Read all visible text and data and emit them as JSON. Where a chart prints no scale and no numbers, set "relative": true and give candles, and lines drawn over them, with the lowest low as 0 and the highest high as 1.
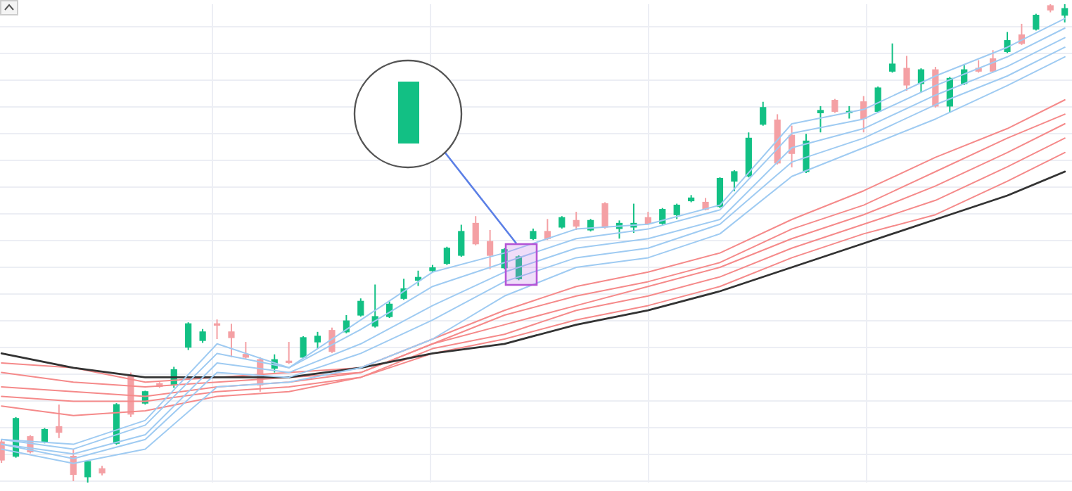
{
  "chart_data": {
    "type": "candlestick",
    "relative": true,
    "grid": true,
    "tick_labels": false,
    "categories": [
      null,
      null,
      null,
      null,
      null,
      null,
      null,
      null,
      null,
      null,
      null,
      null,
      null,
      null,
      null,
      null,
      null,
      null,
      null,
      null,
      null,
      null,
      null,
      null,
      null,
      null,
      null,
      null,
      null,
      null,
      null,
      null,
      null,
      null,
      null,
      null,
      null,
      null,
      null,
      null,
      null,
      null,
      null,
      null,
      null,
      null,
      null,
      null,
      null,
      null,
      null,
      null,
      null,
      null,
      null,
      null,
      null,
      null,
      null,
      null,
      null,
      null,
      null,
      null,
      null,
      null,
      null,
      null,
      null,
      null,
      null,
      null,
      null,
      null,
      null
    ],
    "ohlc": [
      [
        0.085,
        0.09,
        0.041,
        0.047
      ],
      [
        0.055,
        0.137,
        0.052,
        0.134
      ],
      [
        0.096,
        0.099,
        0.061,
        0.064
      ],
      [
        0.085,
        0.114,
        0.082,
        0.111
      ],
      [
        0.117,
        0.163,
        0.093,
        0.105
      ],
      [
        0.055,
        0.07,
        0.003,
        0.017
      ],
      [
        0.012,
        0.047,
        0,
        0.044
      ],
      [
        0.029,
        0.035,
        0.015,
        0.02
      ],
      [
        0.082,
        0.166,
        0.079,
        0.163
      ],
      [
        0.222,
        0.23,
        0.137,
        0.143
      ],
      [
        0.166,
        0.192,
        0.163,
        0.19
      ],
      [
        0.207,
        0.21,
        0.198,
        0.201
      ],
      [
        0.204,
        0.242,
        0.198,
        0.236
      ],
      [
        0.283,
        0.335,
        0.277,
        0.332
      ],
      [
        0.297,
        0.321,
        0.292,
        0.315
      ],
      [
        0.332,
        0.341,
        0.3,
        0.329
      ],
      [
        0.315,
        0.332,
        0.262,
        0.303
      ],
      [
        0.268,
        0.294,
        0.259,
        0.262
      ],
      [
        0.257,
        0.262,
        0.19,
        0.204
      ],
      [
        0.239,
        0.268,
        0.23,
        0.257
      ],
      [
        0.254,
        0.294,
        0.248,
        0.251
      ],
      [
        0.262,
        0.306,
        0.259,
        0.303
      ],
      [
        0.294,
        0.315,
        0.28,
        0.306
      ],
      [
        0.318,
        0.324,
        0.271,
        0.274
      ],
      [
        0.315,
        0.35,
        0.312,
        0.338
      ],
      [
        0.35,
        0.385,
        0.347,
        0.379
      ],
      [
        0.327,
        0.414,
        0.324,
        0.347
      ],
      [
        0.347,
        0.379,
        0.344,
        0.373
      ],
      [
        0.385,
        0.426,
        0.382,
        0.405
      ],
      [
        0.423,
        0.443,
        0.411,
        0.429
      ],
      [
        0.443,
        0.455,
        0.44,
        0.449
      ],
      [
        0.458,
        0.493,
        0.455,
        0.49
      ],
      [
        0.475,
        0.539,
        0.472,
        0.525
      ],
      [
        0.542,
        0.557,
        0.496,
        0.499
      ],
      [
        0.504,
        0.528,
        0.446,
        0.475
      ],
      [
        0.449,
        0.49,
        0.446,
        0.487
      ],
      [
        0.426,
        0.475,
        0.423,
        0.472
      ],
      [
        0.51,
        0.531,
        0.507,
        0.525
      ],
      [
        0.525,
        0.551,
        0.507,
        0.51
      ],
      [
        0.534,
        0.557,
        0.531,
        0.554
      ],
      [
        0.548,
        0.566,
        0.528,
        0.536
      ],
      [
        0.528,
        0.551,
        0.525,
        0.548
      ],
      [
        0.583,
        0.586,
        0.531,
        0.534
      ],
      [
        0.531,
        0.548,
        0.51,
        0.542
      ],
      [
        0.534,
        0.583,
        0.522,
        0.542
      ],
      [
        0.554,
        0.566,
        0.539,
        0.542
      ],
      [
        0.542,
        0.574,
        0.539,
        0.571
      ],
      [
        0.56,
        0.583,
        0.551,
        0.58
      ],
      [
        0.589,
        0.601,
        0.586,
        0.595
      ],
      [
        0.586,
        0.595,
        0.569,
        0.571
      ],
      [
        0.577,
        0.638,
        0.574,
        0.636
      ],
      [
        0.63,
        0.653,
        0.609,
        0.65
      ],
      [
        0.641,
        0.732,
        0.638,
        0.72
      ],
      [
        0.749,
        0.796,
        0.746,
        0.784
      ],
      [
        0.758,
        0.77,
        0.665,
        0.668
      ],
      [
        0.726,
        0.746,
        0.659,
        0.688
      ],
      [
        0.65,
        0.729,
        0.647,
        0.714
      ],
      [
        0.773,
        0.787,
        0.732,
        0.778
      ],
      [
        0.799,
        0.802,
        0.773,
        0.776
      ],
      [
        0.773,
        0.787,
        0.761,
        0.776
      ],
      [
        0.796,
        0.808,
        0.732,
        0.761
      ],
      [
        0.776,
        0.828,
        0.773,
        0.825
      ],
      [
        0.86,
        0.918,
        0.857,
        0.875
      ],
      [
        0.866,
        0.892,
        0.819,
        0.831
      ],
      [
        0.834,
        0.866,
        0.816,
        0.863
      ],
      [
        0.863,
        0.869,
        0.784,
        0.787
      ],
      [
        0.787,
        0.848,
        0.773,
        0.845
      ],
      [
        0.834,
        0.875,
        0.831,
        0.863
      ],
      [
        0.866,
        0.883,
        0.857,
        0.86
      ],
      [
        0.886,
        0.904,
        0.857,
        0.86
      ],
      [
        0.901,
        0.942,
        0.898,
        0.924
      ],
      [
        0.936,
        0.959,
        0.915,
        0.918
      ],
      [
        0.948,
        0.98,
        0.945,
        0.977
      ],
      [
        0.997,
        1,
        0.983,
        0.988
      ],
      [
        0.977,
        1,
        0.962,
        0.991
      ]
    ],
    "colors": [
      "#f4a0a4",
      "#12c084",
      "#f4a0a4",
      "#12c084",
      "#f4a0a4",
      "#f4a0a4",
      "#12c084",
      "#f4a0a4",
      "#12c084",
      "#f4a0a4",
      "#12c084",
      "#f4a0a4",
      "#12c084",
      "#12c084",
      "#12c084",
      "#f4a0a4",
      "#f4a0a4",
      "#f4a0a4",
      "#f4a0a4",
      "#12c084",
      "#f4a0a4",
      "#12c084",
      "#12c084",
      "#f4a0a4",
      "#12c084",
      "#12c084",
      "#12c084",
      "#12c084",
      "#12c084",
      "#12c084",
      "#12c084",
      "#12c084",
      "#12c084",
      "#f4a0a4",
      "#f4a0a4",
      "#12c084",
      "#12c084",
      "#12c084",
      "#f4a0a4",
      "#12c084",
      "#f4a0a4",
      "#12c084",
      "#f4a0a4",
      "#12c084",
      "#12c084",
      "#f4a0a4",
      "#12c084",
      "#12c084",
      "#12c084",
      "#f4a0a4",
      "#12c084",
      "#12c084",
      "#12c084",
      "#12c084",
      "#f4a0a4",
      "#f4a0a4",
      "#12c084",
      "#12c084",
      "#f4a0a4",
      "#12c084",
      "#f4a0a4",
      "#12c084",
      "#12c084",
      "#f4a0a4",
      "#12c084",
      "#f4a0a4",
      "#12c084",
      "#12c084",
      "#f4a0a4",
      "#f4a0a4",
      "#12c084",
      "#f4a0a4",
      "#12c084",
      "#f4a0a4",
      "#12c084"
    ],
    "series": [
      {
        "type": "line",
        "color": "#f58a8a",
        "values": [
          0.25,
          null,
          null,
          null,
          null,
          0.24,
          null,
          null,
          null,
          null,
          0.21,
          null,
          null,
          null,
          null,
          0.22,
          null,
          null,
          null,
          null,
          0.23,
          null,
          null,
          null,
          null,
          0.24,
          null,
          null,
          null,
          null,
          0.3,
          null,
          null,
          null,
          null,
          0.36,
          null,
          null,
          null,
          null,
          0.41,
          null,
          null,
          null,
          null,
          0.44,
          null,
          null,
          null,
          null,
          0.48,
          null,
          null,
          null,
          null,
          0.55,
          null,
          null,
          null,
          null,
          0.61,
          null,
          null,
          null,
          null,
          0.68,
          null,
          null,
          null,
          null,
          0.74,
          null,
          null,
          null,
          0.8
        ]
      },
      {
        "type": "line",
        "color": "#f58a8a",
        "values": [
          0.23,
          null,
          null,
          null,
          null,
          0.21,
          null,
          null,
          null,
          null,
          0.2,
          null,
          null,
          null,
          null,
          0.21,
          null,
          null,
          null,
          null,
          0.22,
          null,
          null,
          null,
          null,
          0.23,
          null,
          null,
          null,
          null,
          0.29,
          null,
          null,
          null,
          null,
          0.35,
          null,
          null,
          null,
          null,
          0.39,
          null,
          null,
          null,
          null,
          0.42,
          null,
          null,
          null,
          null,
          0.46,
          null,
          null,
          null,
          null,
          0.53,
          null,
          null,
          null,
          null,
          0.58,
          null,
          null,
          null,
          null,
          0.65,
          null,
          null,
          null,
          null,
          0.72,
          null,
          null,
          null,
          0.77
        ]
      },
      {
        "type": "line",
        "color": "#f58a8a",
        "values": [
          0.2,
          null,
          null,
          null,
          null,
          0.19,
          null,
          null,
          null,
          null,
          0.18,
          null,
          null,
          null,
          null,
          0.2,
          null,
          null,
          null,
          null,
          0.21,
          null,
          null,
          null,
          null,
          0.23,
          null,
          null,
          null,
          null,
          0.29,
          null,
          null,
          null,
          null,
          0.33,
          null,
          null,
          null,
          null,
          0.37,
          null,
          null,
          null,
          null,
          0.41,
          null,
          null,
          null,
          null,
          0.45,
          null,
          null,
          null,
          null,
          0.51,
          null,
          null,
          null,
          null,
          0.56,
          null,
          null,
          null,
          null,
          0.62,
          null,
          null,
          null,
          null,
          0.69,
          null,
          null,
          null,
          0.75
        ]
      },
      {
        "type": "line",
        "color": "#f58a8a",
        "values": [
          0.18,
          null,
          null,
          null,
          null,
          0.17,
          null,
          null,
          null,
          null,
          0.17,
          null,
          null,
          null,
          null,
          0.19,
          null,
          null,
          null,
          null,
          0.2,
          null,
          null,
          null,
          null,
          0.22,
          null,
          null,
          null,
          null,
          0.28,
          null,
          null,
          null,
          null,
          0.31,
          null,
          null,
          null,
          null,
          0.36,
          null,
          null,
          null,
          null,
          0.39,
          null,
          null,
          null,
          null,
          0.43,
          null,
          null,
          null,
          null,
          0.49,
          null,
          null,
          null,
          null,
          0.54,
          null,
          null,
          null,
          null,
          0.59,
          null,
          null,
          null,
          null,
          0.66,
          null,
          null,
          null,
          0.72
        ]
      },
      {
        "type": "line",
        "color": "#f58a8a",
        "values": [
          0.16,
          null,
          null,
          null,
          null,
          0.14,
          null,
          null,
          null,
          null,
          0.15,
          null,
          null,
          null,
          null,
          0.18,
          null,
          null,
          null,
          null,
          0.19,
          null,
          null,
          null,
          null,
          0.22,
          null,
          null,
          null,
          null,
          0.27,
          null,
          null,
          null,
          null,
          0.3,
          null,
          null,
          null,
          null,
          0.34,
          null,
          null,
          null,
          null,
          0.37,
          null,
          null,
          null,
          null,
          0.41,
          null,
          null,
          null,
          null,
          0.47,
          null,
          null,
          null,
          null,
          0.52,
          null,
          null,
          null,
          null,
          0.56,
          null,
          null,
          null,
          null,
          0.63,
          null,
          null,
          null,
          0.69
        ]
      },
      {
        "type": "line",
        "color": "#333333",
        "values": [
          0.27,
          null,
          null,
          null,
          null,
          0.24,
          null,
          null,
          null,
          null,
          0.22,
          null,
          null,
          null,
          null,
          0.22,
          null,
          null,
          null,
          null,
          0.22,
          null,
          null,
          null,
          null,
          0.24,
          null,
          null,
          null,
          null,
          0.27,
          null,
          null,
          null,
          null,
          0.29,
          null,
          null,
          null,
          null,
          0.33,
          null,
          null,
          null,
          null,
          0.36,
          null,
          null,
          null,
          null,
          0.4,
          null,
          null,
          null,
          null,
          0.45,
          null,
          null,
          null,
          null,
          0.5,
          null,
          null,
          null,
          null,
          0.55,
          null,
          null,
          null,
          null,
          0.6,
          null,
          null,
          null,
          0.65
        ]
      },
      {
        "type": "line",
        "color": "#9fcbf2",
        "values": [
          0.09,
          null,
          null,
          null,
          null,
          0.08,
          null,
          null,
          null,
          null,
          0.13,
          null,
          null,
          null,
          null,
          0.29,
          null,
          null,
          null,
          null,
          0.24,
          null,
          null,
          null,
          null,
          0.34,
          null,
          null,
          null,
          null,
          0.44,
          null,
          null,
          null,
          null,
          0.48,
          null,
          null,
          null,
          null,
          0.53,
          null,
          null,
          null,
          null,
          0.54,
          null,
          null,
          null,
          null,
          0.58,
          null,
          null,
          null,
          null,
          0.75,
          null,
          null,
          null,
          null,
          0.78,
          null,
          null,
          null,
          null,
          0.85,
          null,
          null,
          null,
          null,
          0.91,
          null,
          null,
          null,
          0.97
        ]
      },
      {
        "type": "line",
        "color": "#9fcbf2",
        "values": [
          0.09,
          null,
          null,
          null,
          null,
          0.07,
          null,
          null,
          null,
          null,
          0.12,
          null,
          null,
          null,
          null,
          0.27,
          null,
          null,
          null,
          null,
          0.24,
          null,
          null,
          null,
          null,
          0.32,
          null,
          null,
          null,
          null,
          0.41,
          null,
          null,
          null,
          null,
          0.46,
          null,
          null,
          null,
          null,
          0.51,
          null,
          null,
          null,
          null,
          0.53,
          null,
          null,
          null,
          null,
          0.57,
          null,
          null,
          null,
          null,
          0.73,
          null,
          null,
          null,
          null,
          0.76,
          null,
          null,
          null,
          null,
          0.83,
          null,
          null,
          null,
          null,
          0.89,
          null,
          null,
          null,
          0.95
        ]
      },
      {
        "type": "line",
        "color": "#9fcbf2",
        "values": [
          0.08,
          null,
          null,
          null,
          null,
          0.06,
          null,
          null,
          null,
          null,
          0.1,
          null,
          null,
          null,
          null,
          0.25,
          null,
          null,
          null,
          null,
          0.23,
          null,
          null,
          null,
          null,
          0.29,
          null,
          null,
          null,
          null,
          0.37,
          null,
          null,
          null,
          null,
          0.44,
          null,
          null,
          null,
          null,
          0.49,
          null,
          null,
          null,
          null,
          0.51,
          null,
          null,
          null,
          null,
          0.55,
          null,
          null,
          null,
          null,
          0.7,
          null,
          null,
          null,
          null,
          0.74,
          null,
          null,
          null,
          null,
          0.81,
          null,
          null,
          null,
          null,
          0.87,
          null,
          null,
          null,
          0.93
        ]
      },
      {
        "type": "line",
        "color": "#9fcbf2",
        "values": [
          0.08,
          null,
          null,
          null,
          null,
          0.05,
          null,
          null,
          null,
          null,
          0.09,
          null,
          null,
          null,
          null,
          0.23,
          null,
          null,
          null,
          null,
          0.22,
          null,
          null,
          null,
          null,
          0.27,
          null,
          null,
          null,
          null,
          0.34,
          null,
          null,
          null,
          null,
          0.42,
          null,
          null,
          null,
          null,
          0.47,
          null,
          null,
          null,
          null,
          0.49,
          null,
          null,
          null,
          null,
          0.54,
          null,
          null,
          null,
          null,
          0.67,
          null,
          null,
          null,
          null,
          0.72,
          null,
          null,
          null,
          null,
          0.79,
          null,
          null,
          null,
          null,
          0.85,
          null,
          null,
          null,
          0.91
        ]
      },
      {
        "type": "line",
        "color": "#9fcbf2",
        "values": [
          0.07,
          null,
          null,
          null,
          null,
          0.04,
          null,
          null,
          null,
          null,
          0.07,
          null,
          null,
          null,
          null,
          0.2,
          null,
          null,
          null,
          null,
          0.21,
          null,
          null,
          null,
          null,
          0.24,
          null,
          null,
          null,
          null,
          0.3,
          null,
          null,
          null,
          null,
          0.39,
          null,
          null,
          null,
          null,
          0.45,
          null,
          null,
          null,
          null,
          0.47,
          null,
          null,
          null,
          null,
          0.52,
          null,
          null,
          null,
          null,
          0.64,
          null,
          null,
          null,
          null,
          0.7,
          null,
          null,
          null,
          null,
          0.76,
          null,
          null,
          null,
          null,
          0.83,
          null,
          null,
          null,
          0.89
        ]
      }
    ]
  }
}
